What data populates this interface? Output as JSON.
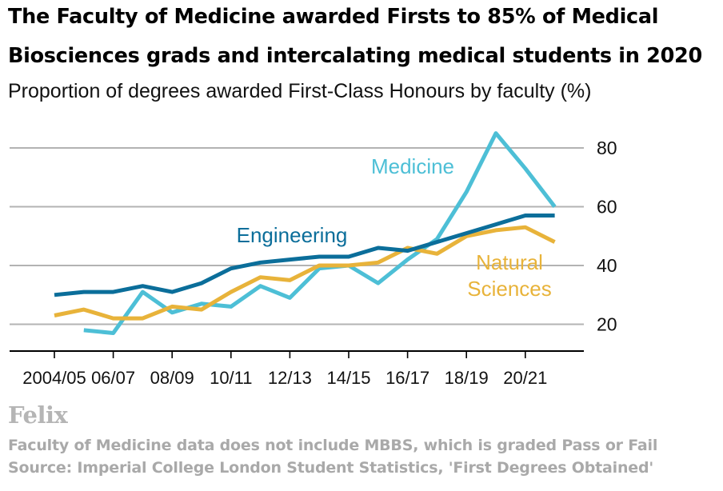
{
  "title_lines": [
    "The Faculty of Medicine awarded Firsts to 85% of Medical",
    "Biosciences grads and intercalating medical students in 2020"
  ],
  "subtitle": "Proportion of degrees awarded First-Class Honours by faculty (%)",
  "logo": "Felix",
  "notes": [
    "Faculty of Medicine data does not include MBBS, which is graded Pass or Fail",
    "Source: Imperial College London Student Statistics, 'First Degrees Obtained'"
  ],
  "chart_data": {
    "type": "line",
    "title": "The Faculty of Medicine awarded Firsts to 85% of Medical Biosciences grads and intercalating medical students in 2020",
    "subtitle": "Proportion of degrees awarded First-Class Honours by faculty (%)",
    "xlabel": "",
    "ylabel": "",
    "ylim": [
      10,
      90
    ],
    "yticks": [
      20,
      40,
      60,
      80
    ],
    "grid": true,
    "legend": "direct labels",
    "x": [
      "2004/05",
      "2005/06",
      "2006/07",
      "2007/08",
      "2008/09",
      "2009/10",
      "2010/11",
      "2011/12",
      "2012/13",
      "2013/14",
      "2014/15",
      "2015/16",
      "2016/17",
      "2017/18",
      "2018/19",
      "2019/20",
      "2020/21",
      "2021/22"
    ],
    "x_tick_labels": [
      "2004/05",
      "06/07",
      "08/09",
      "10/11",
      "12/13",
      "14/15",
      "16/17",
      "18/19",
      "20/21"
    ],
    "series": [
      {
        "name": "Engineering",
        "label": "Engineering",
        "color": "#0b6e9a",
        "values": [
          30,
          31,
          31,
          33,
          31,
          34,
          39,
          41,
          42,
          43,
          43,
          46,
          45,
          48,
          51,
          54,
          57,
          57
        ]
      },
      {
        "name": "Medicine",
        "label": "Medicine",
        "color": "#4dbfd6",
        "values": [
          null,
          18,
          17,
          31,
          24,
          27,
          26,
          33,
          29,
          39,
          40,
          34,
          42,
          49,
          65,
          85,
          73,
          60
        ]
      },
      {
        "name": "Natural Sciences",
        "label_lines": [
          "Natural",
          "Sciences"
        ],
        "color": "#e8b33a",
        "values": [
          23,
          25,
          22,
          22,
          26,
          25,
          31,
          36,
          35,
          40,
          40,
          41,
          46,
          44,
          50,
          52,
          53,
          48
        ]
      }
    ]
  }
}
